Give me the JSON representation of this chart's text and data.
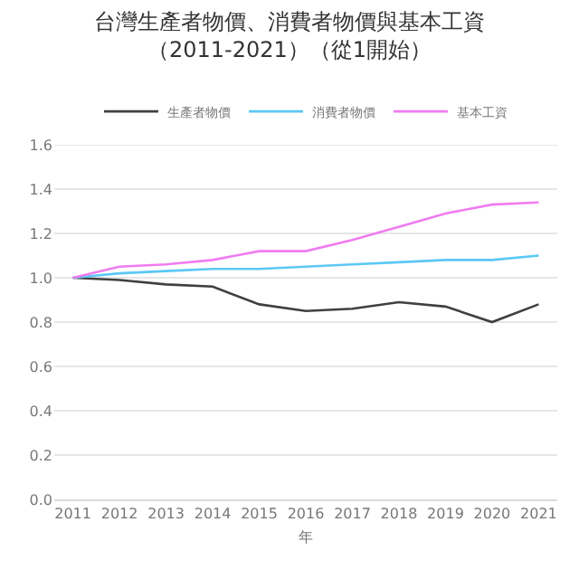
{
  "chart_data": {
    "type": "line",
    "title": "台灣生產者物價、消費者物價與基本工資",
    "subtitle": "（2011-2021）（從1開始）",
    "xlabel": "年",
    "categories": [
      "2011",
      "2012",
      "2013",
      "2014",
      "2015",
      "2016",
      "2017",
      "2018",
      "2019",
      "2020",
      "2021"
    ],
    "series": [
      {
        "name": "生產者物價",
        "color": "#404040",
        "values": [
          1.0,
          0.99,
          0.97,
          0.96,
          0.88,
          0.85,
          0.86,
          0.89,
          0.87,
          0.8,
          0.88
        ]
      },
      {
        "name": "消費者物價",
        "color": "#5bc8f5",
        "values": [
          1.0,
          1.02,
          1.03,
          1.04,
          1.04,
          1.05,
          1.06,
          1.07,
          1.08,
          1.08,
          1.1
        ]
      },
      {
        "name": "基本工資",
        "color": "#f07cf0",
        "values": [
          1.0,
          1.05,
          1.06,
          1.08,
          1.12,
          1.12,
          1.17,
          1.23,
          1.29,
          1.33,
          1.34
        ]
      }
    ],
    "ylim": [
      0,
      1.6
    ],
    "yticks": [
      {
        "value": 0,
        "label": "0.0"
      },
      {
        "value": 0.2,
        "label": "0.2"
      },
      {
        "value": 0.4,
        "label": "0.4"
      },
      {
        "value": 0.6,
        "label": "0.6"
      },
      {
        "value": 0.8,
        "label": "0.8"
      },
      {
        "value": 1,
        "label": "1.0"
      },
      {
        "value": 1.2,
        "label": "1.2"
      },
      {
        "value": 1.4,
        "label": "1.4"
      },
      {
        "value": 1.6,
        "label": "1.6"
      }
    ],
    "grid": "y",
    "legend": "top",
    "marker": "none",
    "line_style": "solid"
  }
}
